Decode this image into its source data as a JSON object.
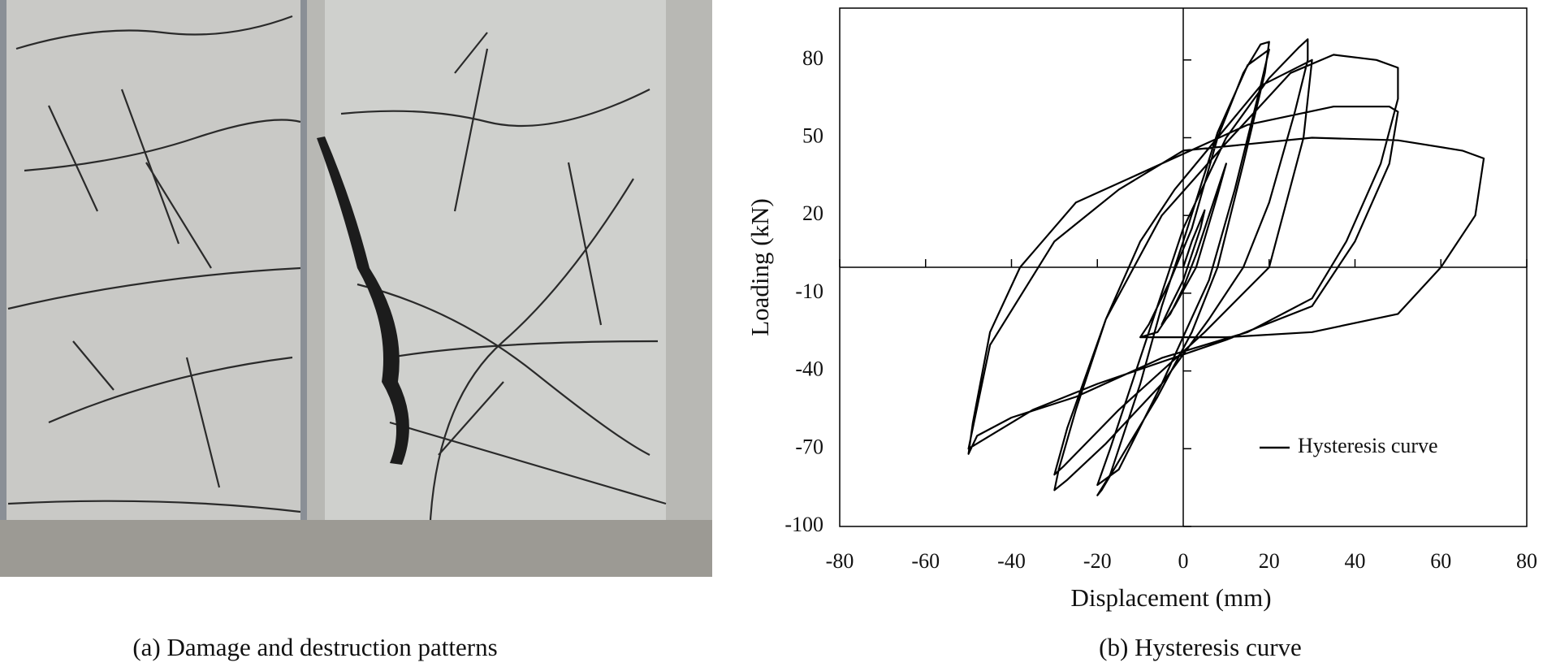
{
  "captions": [
    "(a) Damage and destruction patterns",
    "(b) Hysteresis curve"
  ],
  "chart_data": {
    "type": "line",
    "xlabel": "Displacement (mm)",
    "ylabel": "Loading (kN)",
    "xlim": [
      -80,
      80
    ],
    "xticks": [
      -80,
      -60,
      -40,
      -20,
      0,
      20,
      40,
      60,
      80
    ],
    "ylim": [
      -100,
      100
    ],
    "yticks": [
      -100,
      -70,
      -40,
      -10,
      20,
      50,
      80
    ],
    "grid": false,
    "legend": "lower right",
    "x": [
      0,
      2,
      5,
      4,
      0,
      -3,
      -5,
      -3,
      0,
      3,
      7,
      10,
      8,
      3,
      -2,
      -6,
      -10,
      -8,
      -3,
      2,
      8,
      14,
      18,
      20,
      19,
      14,
      8,
      2,
      -6,
      -14,
      -19,
      -20,
      -17,
      -10,
      -5,
      0,
      8,
      15,
      20,
      18,
      12,
      6,
      -5,
      -15,
      -20,
      -17,
      -10,
      0,
      10,
      20,
      27,
      29,
      29,
      26,
      20,
      14,
      6,
      -5,
      -18,
      -27,
      -30,
      -29,
      -25,
      -18,
      -10,
      -2,
      8,
      18,
      30,
      28,
      20,
      5,
      -15,
      -28,
      -30,
      -27,
      -18,
      -5,
      10,
      25,
      35,
      45,
      50,
      50,
      46,
      38,
      30,
      15,
      -5,
      -25,
      -40,
      -48,
      -50,
      -49,
      -45,
      -38,
      -25,
      -5,
      15,
      35,
      48,
      50,
      48,
      40,
      30,
      10,
      -20,
      -35,
      -50,
      -45,
      -30,
      -15,
      0,
      30,
      50,
      65,
      70,
      68,
      60,
      50,
      30,
      10,
      -10
    ],
    "series": [
      {
        "name": "Hysteresis curve",
        "color": "#000000",
        "values": [
          0,
          10,
          22,
          15,
          -5,
          -15,
          -22,
          -18,
          -8,
          5,
          25,
          40,
          28,
          0,
          -15,
          -25,
          -27,
          -22,
          -5,
          15,
          50,
          75,
          86,
          87,
          75,
          40,
          0,
          -25,
          -50,
          -72,
          -86,
          -88,
          -80,
          -45,
          -15,
          10,
          52,
          78,
          84,
          70,
          30,
          -5,
          -45,
          -78,
          -84,
          -70,
          -35,
          15,
          50,
          73,
          85,
          88,
          80,
          60,
          25,
          0,
          -20,
          -45,
          -68,
          -82,
          -86,
          -78,
          -55,
          -20,
          10,
          30,
          50,
          70,
          80,
          50,
          0,
          -25,
          -55,
          -77,
          -80,
          -62,
          -20,
          20,
          48,
          75,
          82,
          80,
          77,
          65,
          40,
          10,
          -12,
          -25,
          -35,
          -50,
          -58,
          -65,
          -72,
          -60,
          -25,
          0,
          25,
          40,
          55,
          62,
          62,
          60,
          40,
          10,
          -15,
          -28,
          -45,
          -55,
          -70,
          -30,
          10,
          30,
          45,
          50,
          49,
          45,
          42,
          20,
          0,
          -18,
          -25,
          -27,
          -27
        ]
      }
    ]
  }
}
